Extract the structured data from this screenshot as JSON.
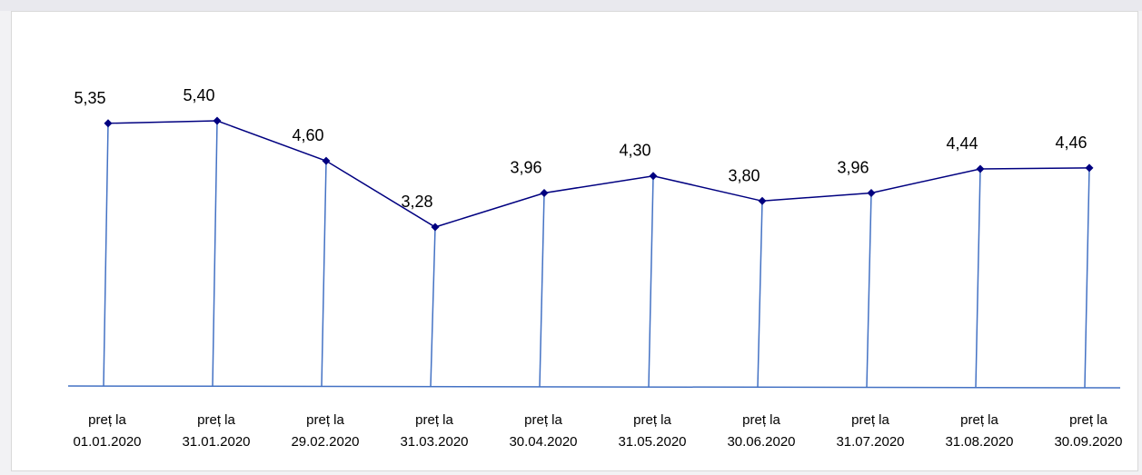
{
  "chart_data": {
    "type": "line",
    "categories": [
      [
        "preț la",
        "01.01.2020"
      ],
      [
        "preț la",
        "31.01.2020"
      ],
      [
        "preț la",
        "29.02.2020"
      ],
      [
        "preț la",
        "31.03.2020"
      ],
      [
        "preț la",
        "30.04.2020"
      ],
      [
        "preț la",
        "31.05.2020"
      ],
      [
        "preț la",
        "30.06.2020"
      ],
      [
        "preț la",
        "31.07.2020"
      ],
      [
        "preț la",
        "31.08.2020"
      ],
      [
        "preț la",
        "30.09.2020"
      ]
    ],
    "values": [
      5.35,
      5.4,
      4.6,
      3.28,
      3.96,
      4.3,
      3.8,
      3.96,
      4.44,
      4.46
    ],
    "value_labels": [
      "5,35",
      "5,40",
      "4,60",
      "3,28",
      "3,96",
      "4,30",
      "3,80",
      "3,96",
      "4,44",
      "4,46"
    ],
    "title": "",
    "xlabel": "",
    "ylabel": "",
    "drop_lines": true,
    "grid": false,
    "legend": "none",
    "colors": {
      "line": "#000080",
      "marker": "#000080",
      "drop_line": "#4472c4",
      "axis": "#4472c4"
    }
  }
}
